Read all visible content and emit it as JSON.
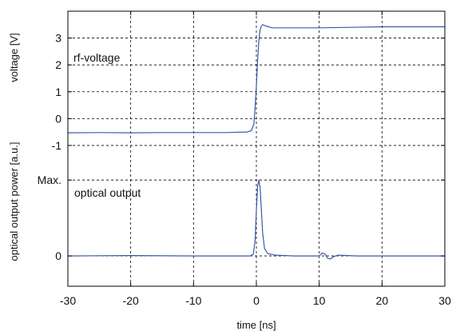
{
  "chart_data": {
    "type": "line",
    "xlabel": "time [ns]",
    "x_ticks": [
      "-30",
      "-20",
      "-10",
      "0",
      "10",
      "20",
      "30"
    ],
    "xlim": [
      -30,
      30
    ],
    "grid": true,
    "panels": [
      {
        "name": "voltage",
        "ylabel": "voltage [V]",
        "y_ticks": [
          {
            "value": 3,
            "label": "3"
          },
          {
            "value": 2,
            "label": "2"
          },
          {
            "value": 1,
            "label": "1"
          },
          {
            "value": 0,
            "label": "0"
          },
          {
            "value": -1,
            "label": "-1"
          }
        ],
        "ylim": [
          -1.3,
          4
        ],
        "annotation": "rf-voltage",
        "series": [
          {
            "color": "#3a5aa8",
            "points": [
              [
                -30,
                -0.53
              ],
              [
                -25,
                -0.52
              ],
              [
                -20,
                -0.53
              ],
              [
                -15,
                -0.52
              ],
              [
                -10,
                -0.52
              ],
              [
                -5,
                -0.52
              ],
              [
                -1.5,
                -0.5
              ],
              [
                -0.8,
                -0.45
              ],
              [
                -0.4,
                -0.2
              ],
              [
                -0.2,
                0.4
              ],
              [
                0,
                1.2
              ],
              [
                0.2,
                2.2
              ],
              [
                0.4,
                2.9
              ],
              [
                0.6,
                3.3
              ],
              [
                0.8,
                3.45
              ],
              [
                1.0,
                3.5
              ],
              [
                1.5,
                3.45
              ],
              [
                2.5,
                3.38
              ],
              [
                5,
                3.38
              ],
              [
                10,
                3.38
              ],
              [
                15,
                3.4
              ],
              [
                20,
                3.42
              ],
              [
                25,
                3.42
              ],
              [
                30,
                3.42
              ]
            ]
          }
        ]
      },
      {
        "name": "optical",
        "ylabel": "optical output power [a.u.]",
        "y_ticks": [
          {
            "value": 1,
            "label": "Max."
          },
          {
            "value": 0,
            "label": "0"
          }
        ],
        "ylim": [
          -0.4,
          1.35
        ],
        "annotation": "optical output",
        "series": [
          {
            "color": "#3a5aa8",
            "points": [
              [
                -30,
                0
              ],
              [
                -20,
                0.005
              ],
              [
                -10,
                0
              ],
              [
                -1,
                0
              ],
              [
                -0.5,
                0.02
              ],
              [
                -0.2,
                0.2
              ],
              [
                0,
                0.6
              ],
              [
                0.2,
                0.92
              ],
              [
                0.4,
                1.0
              ],
              [
                0.6,
                0.9
              ],
              [
                0.8,
                0.6
              ],
              [
                1.0,
                0.3
              ],
              [
                1.3,
                0.1
              ],
              [
                1.8,
                0.03
              ],
              [
                3,
                0.01
              ],
              [
                6,
                0
              ],
              [
                10,
                0
              ],
              [
                10.5,
                0.04
              ],
              [
                11,
                0.02
              ],
              [
                11.3,
                -0.03
              ],
              [
                11.8,
                -0.04
              ],
              [
                12.3,
                -0.01
              ],
              [
                13,
                0.01
              ],
              [
                16,
                0
              ],
              [
                22,
                0
              ],
              [
                30,
                0
              ]
            ]
          }
        ]
      }
    ]
  }
}
